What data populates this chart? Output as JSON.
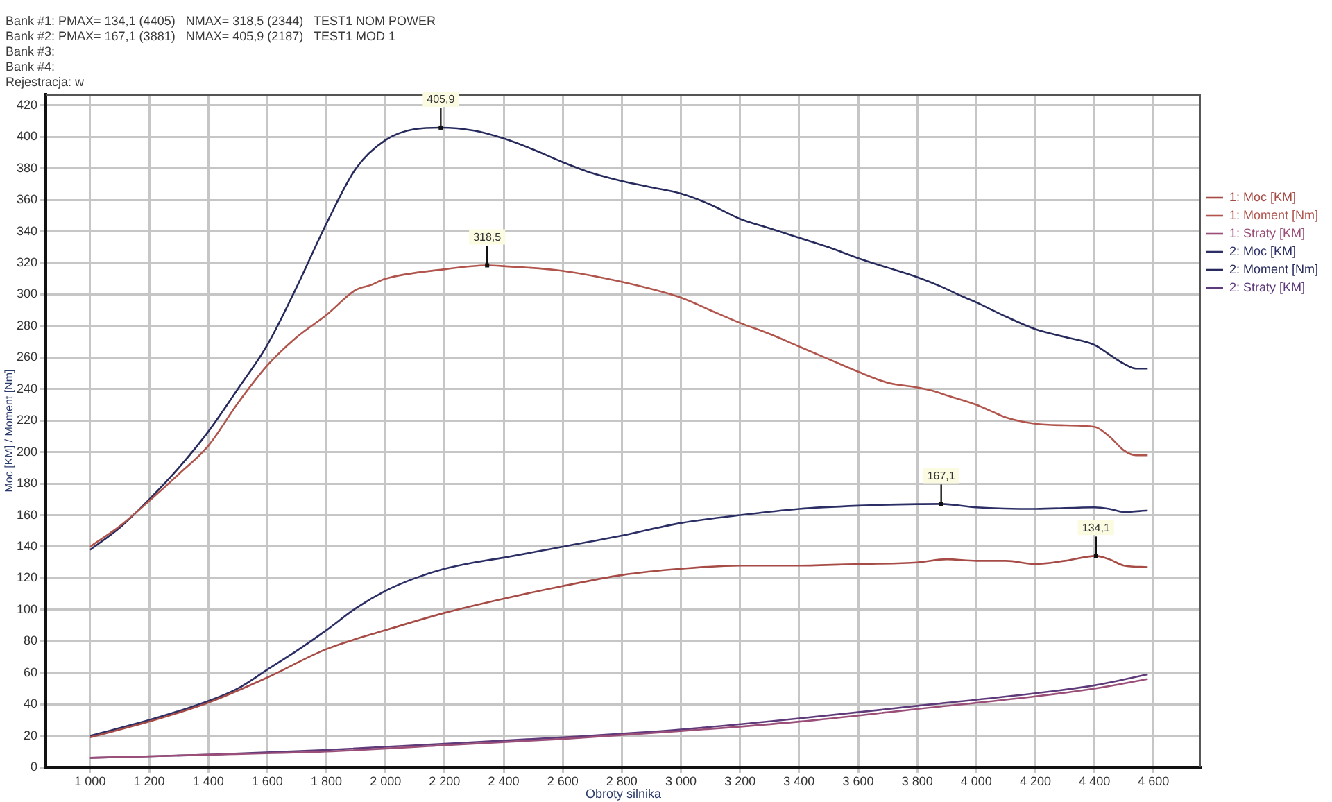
{
  "chart_data": {
    "type": "line",
    "xlabel": "Obroty silnika",
    "ylabel": "Moc [KM] / Moment [Nm]",
    "xlim": [
      850,
      4760
    ],
    "ylim": [
      0,
      427
    ],
    "xticks": [
      {
        "value": 1000,
        "label": "1 000"
      },
      {
        "value": 1200,
        "label": "1 200"
      },
      {
        "value": 1400,
        "label": "1 400"
      },
      {
        "value": 1600,
        "label": "1 600"
      },
      {
        "value": 1800,
        "label": "1 800"
      },
      {
        "value": 2000,
        "label": "2 000"
      },
      {
        "value": 2200,
        "label": "2 200"
      },
      {
        "value": 2400,
        "label": "2 400"
      },
      {
        "value": 2600,
        "label": "2 600"
      },
      {
        "value": 2800,
        "label": "2 800"
      },
      {
        "value": 3000,
        "label": "3 000"
      },
      {
        "value": 3200,
        "label": "3 200"
      },
      {
        "value": 3400,
        "label": "3 400"
      },
      {
        "value": 3600,
        "label": "3 600"
      },
      {
        "value": 3800,
        "label": "3 800"
      },
      {
        "value": 4000,
        "label": "4 000"
      },
      {
        "value": 4200,
        "label": "4 200"
      },
      {
        "value": 4400,
        "label": "4 400"
      },
      {
        "value": 4600,
        "label": "4 600"
      }
    ],
    "yticks": [
      0,
      20,
      40,
      60,
      80,
      100,
      120,
      140,
      160,
      180,
      200,
      220,
      240,
      260,
      280,
      300,
      320,
      340,
      360,
      380,
      400,
      420
    ],
    "grid": true,
    "legend": "right",
    "marker": "none",
    "line_style": "solid",
    "series": [
      {
        "name": "1: Moc [KM]",
        "color": "#a64b45",
        "x": [
          1000,
          1200,
          1400,
          1600,
          1800,
          2000,
          2200,
          2400,
          2600,
          2800,
          3000,
          3200,
          3400,
          3600,
          3800,
          3900,
          4000,
          4100,
          4200,
          4300,
          4405,
          4450,
          4500,
          4580
        ],
        "values": [
          19,
          29,
          41,
          57,
          75,
          87,
          98,
          107,
          115,
          122,
          126,
          128,
          128,
          129,
          130,
          132,
          131,
          131,
          129,
          131,
          134.1,
          132,
          128,
          127
        ]
      },
      {
        "name": "1: Moment [Nm]",
        "color": "#b0544c",
        "x": [
          1000,
          1100,
          1200,
          1300,
          1400,
          1500,
          1600,
          1700,
          1800,
          1900,
          1950,
          2000,
          2200,
          2344,
          2400,
          2600,
          2800,
          3000,
          3100,
          3200,
          3300,
          3400,
          3500,
          3600,
          3700,
          3800,
          3850,
          3900,
          4000,
          4050,
          4100,
          4200,
          4300,
          4400,
          4450,
          4500,
          4540,
          4580
        ],
        "values": [
          140,
          153,
          169,
          186,
          204,
          231,
          255,
          273,
          287,
          303,
          306,
          310,
          316,
          318.5,
          318,
          315,
          308,
          298,
          290,
          282,
          275,
          267,
          259,
          251,
          244,
          241,
          239,
          236,
          230,
          226,
          222,
          218,
          217,
          216,
          210,
          201,
          198,
          198
        ]
      },
      {
        "name": "1: Straty [KM]",
        "color": "#9a4e78",
        "x": [
          1000,
          1400,
          1800,
          2200,
          2600,
          3000,
          3400,
          3800,
          4200,
          4400,
          4580
        ],
        "values": [
          6,
          8,
          10,
          14,
          18,
          23,
          29,
          37,
          45,
          50,
          56
        ]
      },
      {
        "name": "2: Moc [KM]",
        "color": "#2c2f66",
        "x": [
          1000,
          1200,
          1400,
          1500,
          1600,
          1700,
          1800,
          1900,
          2000,
          2100,
          2200,
          2300,
          2400,
          2600,
          2800,
          3000,
          3200,
          3400,
          3600,
          3800,
          3881,
          4000,
          4200,
          4400,
          4450,
          4500,
          4580
        ],
        "values": [
          20,
          30,
          42,
          50,
          62,
          74,
          87,
          101,
          112,
          120,
          126,
          130,
          133,
          140,
          147,
          155,
          160,
          164,
          166,
          167,
          167.1,
          165,
          164,
          165,
          164,
          162,
          163
        ]
      },
      {
        "name": "2: Moment [Nm]",
        "color": "#262a5c",
        "x": [
          1000,
          1100,
          1200,
          1300,
          1400,
          1500,
          1600,
          1700,
          1800,
          1900,
          2000,
          2100,
          2187,
          2300,
          2400,
          2500,
          2600,
          2700,
          2800,
          2900,
          3000,
          3100,
          3200,
          3300,
          3400,
          3500,
          3600,
          3700,
          3800,
          3881,
          3950,
          4000,
          4100,
          4200,
          4300,
          4400,
          4450,
          4500,
          4540,
          4580
        ],
        "values": [
          138,
          152,
          170,
          190,
          213,
          240,
          268,
          305,
          345,
          380,
          398,
          405,
          405.9,
          404,
          399,
          392,
          384,
          377,
          372,
          368,
          364,
          357,
          348,
          342,
          336,
          330,
          323,
          317,
          311,
          305,
          299,
          295,
          286,
          278,
          273,
          268,
          262,
          256,
          253,
          253
        ]
      },
      {
        "name": "2: Straty [KM]",
        "color": "#5e3a7a",
        "x": [
          1000,
          1400,
          1800,
          2200,
          2600,
          3000,
          3400,
          3800,
          4200,
          4400,
          4580
        ],
        "values": [
          6,
          8,
          11,
          15,
          19,
          24,
          31,
          39,
          47,
          52,
          59
        ]
      }
    ],
    "annotations": [
      "Bank #1: PMAX= 134,1 (4405)   NMAX= 318,5 (2344)   TEST1 NOM POWER",
      "Bank #2: PMAX= 167,1 (3881)   NMAX= 405,9 (2187)   TEST1 MOD 1",
      "Bank #3:",
      "Bank #4:",
      "Rejestracja: w",
      {
        "text": "405,9",
        "x": 2187,
        "y": 405.9
      },
      {
        "text": "318,5",
        "x": 2344,
        "y": 318.5
      },
      {
        "text": "167,1",
        "x": 3881,
        "y": 167.1
      },
      {
        "text": "134,1",
        "x": 4405,
        "y": 134.1
      }
    ]
  }
}
